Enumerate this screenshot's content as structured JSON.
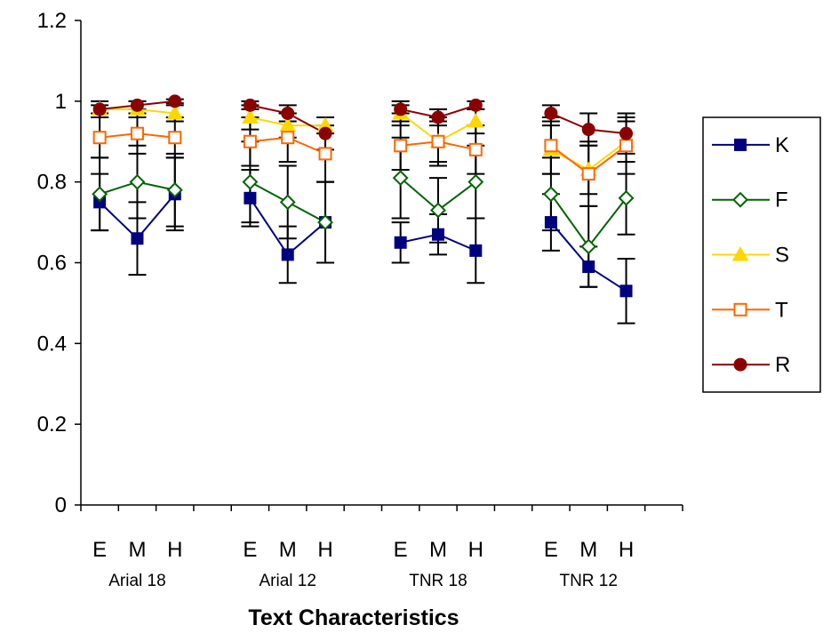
{
  "chart_data": {
    "type": "line",
    "title": "",
    "xlabel": "Text Characteristics",
    "ylabel": "",
    "ylim": [
      0,
      1.2
    ],
    "yticks": [
      0,
      0.2,
      0.4,
      0.6,
      0.8,
      1,
      1.2
    ],
    "ytick_labels": [
      "0",
      "0.2",
      "0.4",
      "0.6",
      "0.8",
      "1",
      "1.2"
    ],
    "groups": [
      "Arial 18",
      "Arial 12",
      "TNR 18",
      "TNR 12"
    ],
    "categories": [
      "E",
      "M",
      "H"
    ],
    "legend_position": "right",
    "series": [
      {
        "name": "K",
        "color": "#000080",
        "marker": "filled-square",
        "values": [
          [
            0.75,
            0.66,
            0.77
          ],
          [
            0.76,
            0.62,
            0.7
          ],
          [
            0.65,
            0.67,
            0.63
          ],
          [
            0.7,
            0.59,
            0.53
          ]
        ],
        "errors": [
          [
            0.07,
            0.09,
            0.09
          ],
          [
            0.07,
            0.07,
            0.1
          ],
          [
            0.05,
            0.05,
            0.08
          ],
          [
            0.07,
            0.05,
            0.08
          ]
        ]
      },
      {
        "name": "F",
        "color": "#006400",
        "marker": "hollow-diamond",
        "values": [
          [
            0.77,
            0.8,
            0.78
          ],
          [
            0.8,
            0.75,
            0.7
          ],
          [
            0.81,
            0.73,
            0.8
          ],
          [
            0.77,
            0.64,
            0.76
          ]
        ],
        "errors": [
          [
            0.09,
            0.09,
            0.09
          ],
          [
            0.1,
            0.09,
            0.1
          ],
          [
            0.1,
            0.08,
            0.09
          ],
          [
            0.09,
            0.1,
            0.09
          ]
        ]
      },
      {
        "name": "S",
        "color": "#FFD700",
        "marker": "filled-triangle",
        "values": [
          [
            0.98,
            0.98,
            0.97
          ],
          [
            0.96,
            0.94,
            0.94
          ],
          [
            0.97,
            0.9,
            0.95
          ],
          [
            0.88,
            0.83,
            0.9
          ]
        ],
        "errors": [
          [
            0.02,
            0.02,
            0.02
          ],
          [
            0.03,
            0.03,
            0.02
          ],
          [
            0.03,
            0.05,
            0.03
          ],
          [
            0.06,
            0.06,
            0.05
          ]
        ]
      },
      {
        "name": "T",
        "color": "#FF6600",
        "marker": "hollow-square",
        "values": [
          [
            0.91,
            0.92,
            0.91
          ],
          [
            0.9,
            0.91,
            0.87
          ],
          [
            0.89,
            0.9,
            0.88
          ],
          [
            0.89,
            0.82,
            0.89
          ]
        ],
        "errors": [
          [
            0.05,
            0.05,
            0.05
          ],
          [
            0.06,
            0.06,
            0.07
          ],
          [
            0.06,
            0.06,
            0.06
          ],
          [
            0.07,
            0.08,
            0.07
          ]
        ]
      },
      {
        "name": "R",
        "color": "#8B0000",
        "marker": "filled-circle",
        "values": [
          [
            0.98,
            0.99,
            1.0
          ],
          [
            0.99,
            0.97,
            0.92
          ],
          [
            0.98,
            0.96,
            0.99
          ],
          [
            0.97,
            0.93,
            0.92
          ]
        ],
        "errors": [
          [
            0.01,
            0.01,
            0.005
          ],
          [
            0.01,
            0.02,
            0.04
          ],
          [
            0.01,
            0.02,
            0.01
          ],
          [
            0.02,
            0.04,
            0.05
          ]
        ]
      }
    ]
  }
}
